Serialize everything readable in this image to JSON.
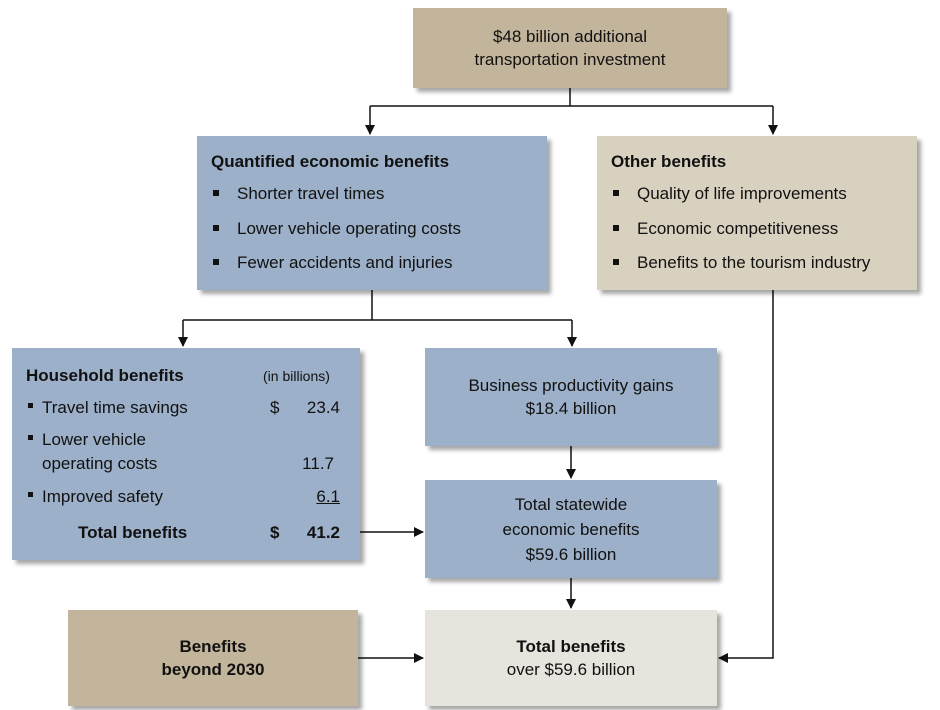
{
  "investment": {
    "lines": [
      "$48 billion additional",
      "transportation investment"
    ]
  },
  "quantified": {
    "title": "Quantified economic benefits",
    "items": [
      "Shorter travel times",
      "Lower vehicle operating costs",
      "Fewer accidents and injuries"
    ]
  },
  "other": {
    "title": "Other benefits",
    "items": [
      "Quality of life improvements",
      "Economic competitiveness",
      "Benefits to the tourism industry"
    ]
  },
  "household": {
    "title": "Household benefits",
    "unit": "(in billions)",
    "rows": [
      {
        "label": [
          "Travel time savings"
        ],
        "currency": "$",
        "amount": 23.4
      },
      {
        "label": [
          "Lower vehicle",
          "operating costs"
        ],
        "amount": 11.7
      },
      {
        "label": [
          "Improved safety"
        ],
        "amount": 6.1
      }
    ],
    "total": {
      "label": "Total benefits",
      "currency": "$",
      "amount": 41.2
    }
  },
  "business": {
    "lines": [
      "Business productivity gains",
      "$18.4 billion"
    ]
  },
  "statewide": {
    "lines": [
      "Total statewide",
      "economic benefits",
      "$59.6 billion"
    ]
  },
  "beyond": {
    "lines": [
      "Benefits",
      "beyond 2030"
    ]
  },
  "total": {
    "lines": [
      "Total benefits",
      "over $59.6 billion"
    ]
  }
}
